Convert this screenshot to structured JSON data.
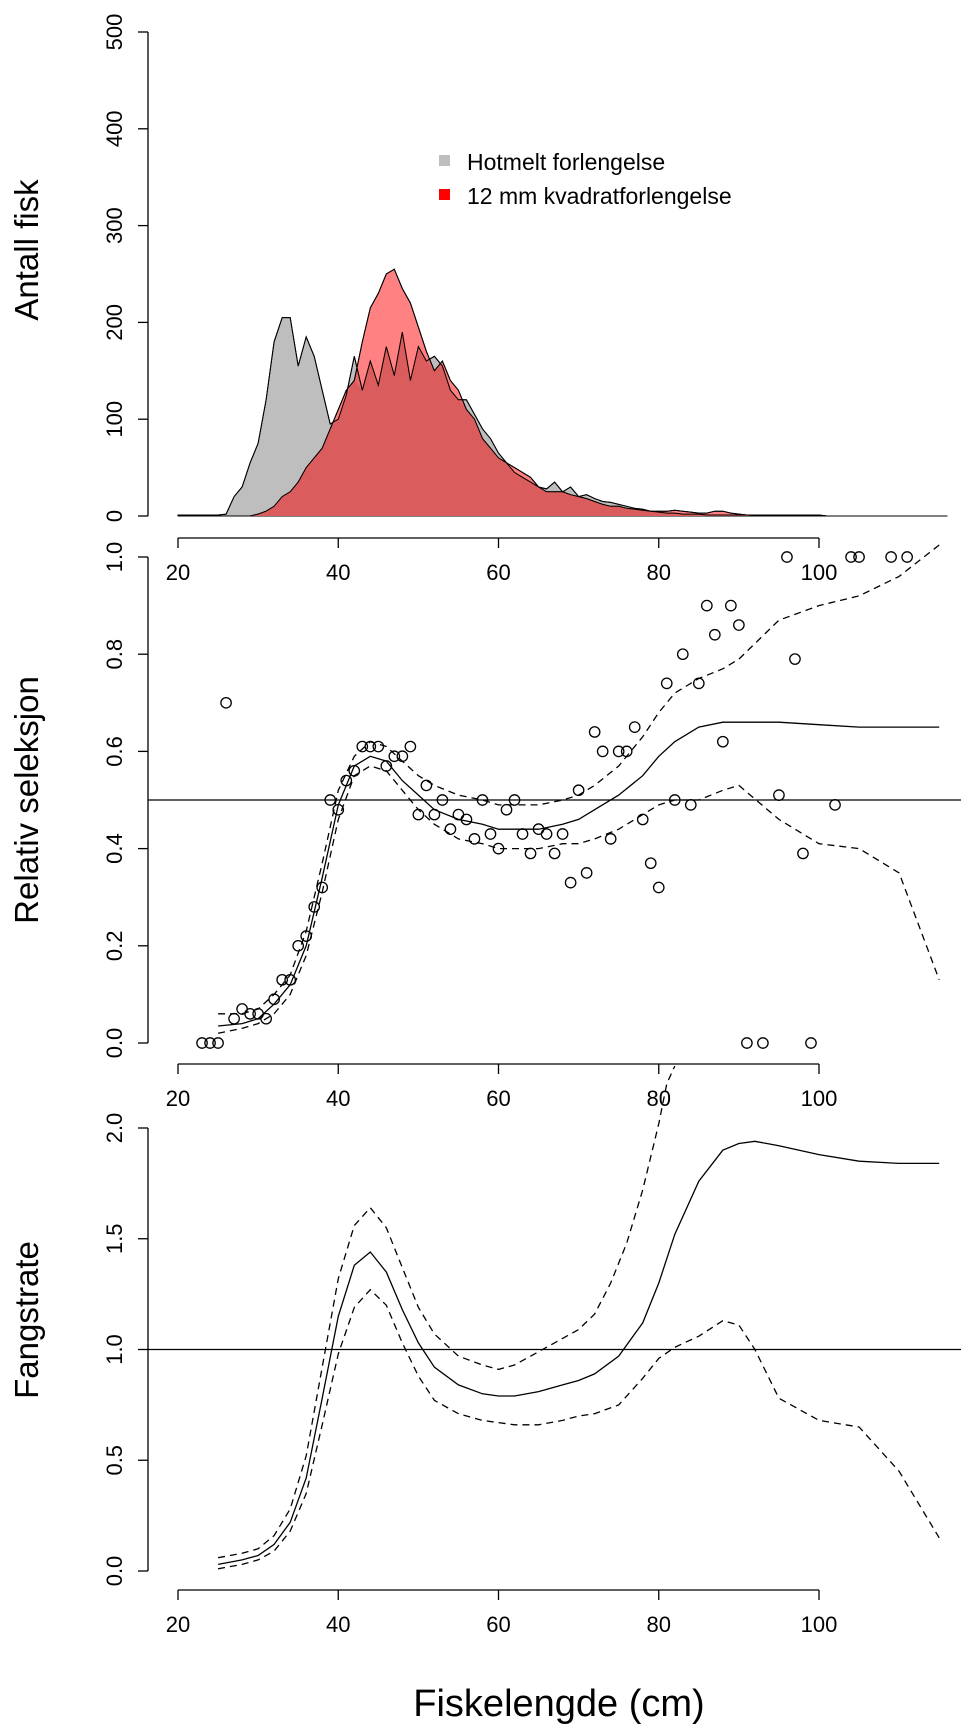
{
  "colors": {
    "grey": "#bebebe",
    "red": "#ff0000",
    "red_fill": "#ff3333",
    "red_overlap": "#db5c5c",
    "line": "#000000"
  },
  "xaxis": {
    "label": "Fiskelengde (cm)",
    "ticks": [
      20,
      40,
      60,
      80,
      100
    ],
    "range": [
      20,
      116
    ]
  },
  "chart_data": [
    {
      "id": "panel-1",
      "type": "area",
      "ylabel": "Antall fisk",
      "ylim": [
        0,
        500
      ],
      "yticks": [
        0,
        100,
        200,
        300,
        400,
        500
      ],
      "legend": {
        "position": "top-center",
        "entries": [
          "Hotmelt forlengelse",
          "12 mm kvadratforlengelse"
        ]
      },
      "series": [
        {
          "name": "Hotmelt forlengelse",
          "color": "#bebebe",
          "x": [
            20,
            25,
            26,
            27,
            28,
            29,
            30,
            31,
            32,
            33,
            34,
            35,
            36,
            37,
            38,
            39,
            40,
            41,
            42,
            43,
            44,
            45,
            46,
            47,
            48,
            49,
            50,
            51,
            52,
            53,
            54,
            55,
            56,
            57,
            58,
            59,
            60,
            61,
            62,
            63,
            64,
            65,
            66,
            67,
            68,
            69,
            70,
            71,
            72,
            73,
            74,
            75,
            76,
            77,
            78,
            79,
            80,
            81,
            82,
            83,
            84,
            85,
            86,
            87,
            88,
            89,
            90,
            91,
            92,
            93,
            94,
            95,
            96,
            97,
            98,
            99,
            100,
            101,
            102,
            103,
            104,
            105,
            106,
            107,
            108,
            109,
            110,
            111,
            112,
            113,
            114,
            115,
            116
          ],
          "y": [
            1,
            1,
            2,
            20,
            30,
            55,
            75,
            120,
            180,
            205,
            205,
            155,
            185,
            165,
            130,
            95,
            100,
            125,
            165,
            130,
            160,
            135,
            175,
            145,
            190,
            140,
            175,
            160,
            165,
            155,
            130,
            120,
            120,
            105,
            90,
            80,
            65,
            55,
            45,
            40,
            35,
            30,
            28,
            35,
            25,
            30,
            20,
            22,
            18,
            15,
            14,
            12,
            10,
            8,
            7,
            5,
            4,
            3,
            3,
            2,
            2,
            2,
            1,
            1,
            1,
            1,
            1,
            1,
            1,
            1,
            1,
            1,
            1,
            1,
            1,
            1,
            1,
            0,
            0,
            0,
            0,
            0,
            0,
            0,
            0,
            0,
            0,
            0,
            0,
            0,
            0,
            0,
            0
          ]
        },
        {
          "name": "12 mm kvadratforlengelse",
          "color": "#ff0000",
          "x": [
            20,
            25,
            26,
            27,
            28,
            29,
            30,
            31,
            32,
            33,
            34,
            35,
            36,
            37,
            38,
            39,
            40,
            41,
            42,
            43,
            44,
            45,
            46,
            47,
            48,
            49,
            50,
            51,
            52,
            53,
            54,
            55,
            56,
            57,
            58,
            59,
            60,
            61,
            62,
            63,
            64,
            65,
            66,
            67,
            68,
            69,
            70,
            71,
            72,
            73,
            74,
            75,
            76,
            77,
            78,
            79,
            80,
            81,
            82,
            83,
            84,
            85,
            86,
            87,
            88,
            89,
            90,
            91,
            92,
            93,
            94,
            95,
            96,
            97,
            98,
            99,
            100,
            101,
            102,
            103,
            104,
            105,
            106,
            107,
            108,
            109,
            110,
            111,
            112,
            113,
            114,
            115,
            116
          ],
          "y": [
            0,
            0,
            0,
            0,
            0,
            0,
            2,
            5,
            10,
            20,
            25,
            35,
            50,
            60,
            70,
            90,
            110,
            130,
            140,
            180,
            215,
            230,
            250,
            255,
            235,
            220,
            195,
            170,
            150,
            160,
            140,
            130,
            110,
            100,
            80,
            70,
            60,
            55,
            50,
            45,
            40,
            30,
            25,
            25,
            25,
            22,
            20,
            18,
            15,
            12,
            10,
            10,
            8,
            7,
            6,
            5,
            5,
            5,
            6,
            5,
            4,
            3,
            3,
            5,
            5,
            3,
            2,
            1,
            0,
            0,
            0,
            0,
            0,
            0,
            0,
            0,
            0,
            0,
            0,
            0,
            0,
            0,
            0,
            0,
            0,
            0,
            0,
            0,
            0,
            0,
            0,
            0,
            0
          ]
        }
      ]
    },
    {
      "id": "panel-2",
      "type": "scatter",
      "ylabel": "Relativ seleksjon",
      "ylim": [
        0,
        1
      ],
      "yticks": [
        "0.0",
        "0.2",
        "0.4",
        "0.6",
        "0.8",
        "1.0"
      ],
      "reference_line": 0.5,
      "points": [
        [
          23,
          0
        ],
        [
          24,
          0
        ],
        [
          25,
          0
        ],
        [
          26,
          0.7
        ],
        [
          27,
          0.05
        ],
        [
          28,
          0.07
        ],
        [
          29,
          0.06
        ],
        [
          30,
          0.06
        ],
        [
          31,
          0.05
        ],
        [
          32,
          0.09
        ],
        [
          33,
          0.13
        ],
        [
          34,
          0.13
        ],
        [
          35,
          0.2
        ],
        [
          36,
          0.22
        ],
        [
          37,
          0.28
        ],
        [
          38,
          0.32
        ],
        [
          39,
          0.5
        ],
        [
          40,
          0.48
        ],
        [
          41,
          0.54
        ],
        [
          42,
          0.56
        ],
        [
          43,
          0.61
        ],
        [
          44,
          0.61
        ],
        [
          45,
          0.61
        ],
        [
          46,
          0.57
        ],
        [
          47,
          0.59
        ],
        [
          48,
          0.59
        ],
        [
          49,
          0.61
        ],
        [
          50,
          0.47
        ],
        [
          51,
          0.53
        ],
        [
          52,
          0.47
        ],
        [
          53,
          0.5
        ],
        [
          54,
          0.44
        ],
        [
          55,
          0.47
        ],
        [
          56,
          0.46
        ],
        [
          57,
          0.42
        ],
        [
          58,
          0.5
        ],
        [
          59,
          0.43
        ],
        [
          60,
          0.4
        ],
        [
          61,
          0.48
        ],
        [
          62,
          0.5
        ],
        [
          63,
          0.43
        ],
        [
          64,
          0.39
        ],
        [
          65,
          0.44
        ],
        [
          66,
          0.43
        ],
        [
          67,
          0.39
        ],
        [
          68,
          0.43
        ],
        [
          69,
          0.33
        ],
        [
          70,
          0.52
        ],
        [
          71,
          0.35
        ],
        [
          72,
          0.64
        ],
        [
          73,
          0.6
        ],
        [
          74,
          0.42
        ],
        [
          75,
          0.6
        ],
        [
          76,
          0.6
        ],
        [
          77,
          0.65
        ],
        [
          78,
          0.46
        ],
        [
          79,
          0.37
        ],
        [
          80,
          0.32
        ],
        [
          81,
          0.74
        ],
        [
          82,
          0.5
        ],
        [
          83,
          0.8
        ],
        [
          84,
          0.49
        ],
        [
          85,
          0.74
        ],
        [
          86,
          0.9
        ],
        [
          87,
          0.84
        ],
        [
          88,
          0.62
        ],
        [
          89,
          0.9
        ],
        [
          90,
          0.86
        ],
        [
          91,
          0
        ],
        [
          93,
          0
        ],
        [
          95,
          0.51
        ],
        [
          96,
          1.0
        ],
        [
          97,
          0.79
        ],
        [
          98,
          0.39
        ],
        [
          99,
          0
        ],
        [
          102,
          0.49
        ],
        [
          104,
          1.0
        ],
        [
          105,
          1.0
        ],
        [
          109,
          1.0
        ],
        [
          111,
          1.0
        ]
      ],
      "curves": [
        {
          "name": "fit",
          "style": "solid",
          "x": [
            25,
            28,
            30,
            32,
            34,
            36,
            38,
            40,
            42,
            44,
            46,
            48,
            50,
            52,
            55,
            58,
            60,
            62,
            65,
            68,
            70,
            72,
            75,
            78,
            80,
            82,
            85,
            88,
            90,
            92,
            95,
            100,
            105,
            110,
            115
          ],
          "y": [
            0.035,
            0.04,
            0.05,
            0.08,
            0.12,
            0.2,
            0.34,
            0.49,
            0.57,
            0.59,
            0.58,
            0.54,
            0.51,
            0.48,
            0.46,
            0.45,
            0.44,
            0.44,
            0.44,
            0.45,
            0.46,
            0.48,
            0.51,
            0.55,
            0.59,
            0.62,
            0.65,
            0.66,
            0.66,
            0.66,
            0.66,
            0.655,
            0.65,
            0.65,
            0.65
          ]
        },
        {
          "name": "upper",
          "style": "dashed",
          "x": [
            25,
            28,
            30,
            32,
            34,
            36,
            38,
            40,
            42,
            44,
            46,
            48,
            50,
            52,
            55,
            58,
            60,
            62,
            65,
            68,
            70,
            72,
            75,
            78,
            80,
            82,
            85,
            88,
            90,
            95,
            100,
            105,
            110,
            115
          ],
          "y": [
            0.06,
            0.06,
            0.07,
            0.1,
            0.14,
            0.23,
            0.37,
            0.52,
            0.59,
            0.62,
            0.61,
            0.58,
            0.55,
            0.53,
            0.51,
            0.5,
            0.49,
            0.49,
            0.49,
            0.5,
            0.51,
            0.53,
            0.57,
            0.63,
            0.68,
            0.72,
            0.75,
            0.77,
            0.79,
            0.87,
            0.9,
            0.92,
            0.96,
            1.05
          ]
        },
        {
          "name": "lower",
          "style": "dashed",
          "x": [
            25,
            28,
            30,
            32,
            34,
            36,
            38,
            40,
            42,
            44,
            46,
            48,
            50,
            52,
            55,
            58,
            60,
            62,
            65,
            68,
            70,
            72,
            75,
            78,
            80,
            82,
            85,
            88,
            90,
            95,
            100,
            105,
            110,
            115
          ],
          "y": [
            0.02,
            0.03,
            0.04,
            0.06,
            0.1,
            0.18,
            0.31,
            0.46,
            0.55,
            0.57,
            0.56,
            0.52,
            0.48,
            0.45,
            0.42,
            0.41,
            0.4,
            0.4,
            0.4,
            0.41,
            0.41,
            0.42,
            0.44,
            0.47,
            0.49,
            0.5,
            0.5,
            0.52,
            0.53,
            0.46,
            0.41,
            0.4,
            0.35,
            0.13
          ]
        }
      ]
    },
    {
      "id": "panel-3",
      "type": "line",
      "ylabel": "Fangstrate",
      "ylim": [
        0,
        2
      ],
      "yticks": [
        "0.0",
        "0.5",
        "1.0",
        "1.5",
        "2.0"
      ],
      "reference_line": 1.0,
      "curves": [
        {
          "name": "fit",
          "style": "solid",
          "x": [
            25,
            28,
            30,
            32,
            34,
            36,
            38,
            40,
            42,
            44,
            46,
            48,
            50,
            52,
            55,
            58,
            60,
            62,
            65,
            68,
            70,
            72,
            75,
            78,
            80,
            82,
            85,
            88,
            90,
            92,
            95,
            100,
            105,
            110,
            115
          ],
          "y": [
            0.03,
            0.05,
            0.07,
            0.12,
            0.22,
            0.42,
            0.78,
            1.15,
            1.38,
            1.44,
            1.35,
            1.18,
            1.03,
            0.92,
            0.84,
            0.8,
            0.79,
            0.79,
            0.81,
            0.84,
            0.86,
            0.89,
            0.97,
            1.12,
            1.3,
            1.52,
            1.76,
            1.9,
            1.93,
            1.94,
            1.92,
            1.88,
            1.85,
            1.84,
            1.84
          ]
        },
        {
          "name": "upper",
          "style": "dashed",
          "x": [
            25,
            28,
            30,
            32,
            34,
            36,
            38,
            40,
            42,
            44,
            46,
            48,
            50,
            52,
            55,
            58,
            60,
            62,
            65,
            68,
            70,
            72,
            74,
            76,
            78,
            80,
            81,
            82
          ],
          "y": [
            0.06,
            0.08,
            0.1,
            0.16,
            0.28,
            0.52,
            0.92,
            1.32,
            1.56,
            1.64,
            1.55,
            1.37,
            1.19,
            1.07,
            0.97,
            0.93,
            0.91,
            0.93,
            0.99,
            1.05,
            1.09,
            1.16,
            1.3,
            1.48,
            1.72,
            2.02,
            2.2,
            2.4
          ]
        },
        {
          "name": "lower",
          "style": "dashed",
          "x": [
            25,
            28,
            30,
            32,
            34,
            36,
            38,
            40,
            42,
            44,
            46,
            48,
            50,
            52,
            55,
            58,
            60,
            62,
            65,
            68,
            70,
            72,
            75,
            78,
            80,
            82,
            85,
            88,
            90,
            92,
            95,
            100,
            105,
            110,
            115
          ],
          "y": [
            0.01,
            0.03,
            0.05,
            0.09,
            0.18,
            0.35,
            0.66,
            0.98,
            1.19,
            1.27,
            1.2,
            1.03,
            0.88,
            0.77,
            0.71,
            0.68,
            0.67,
            0.66,
            0.66,
            0.68,
            0.7,
            0.71,
            0.75,
            0.87,
            0.96,
            1.01,
            1.06,
            1.13,
            1.11,
            1.0,
            0.78,
            0.68,
            0.65,
            0.45,
            0.15
          ]
        }
      ]
    }
  ]
}
